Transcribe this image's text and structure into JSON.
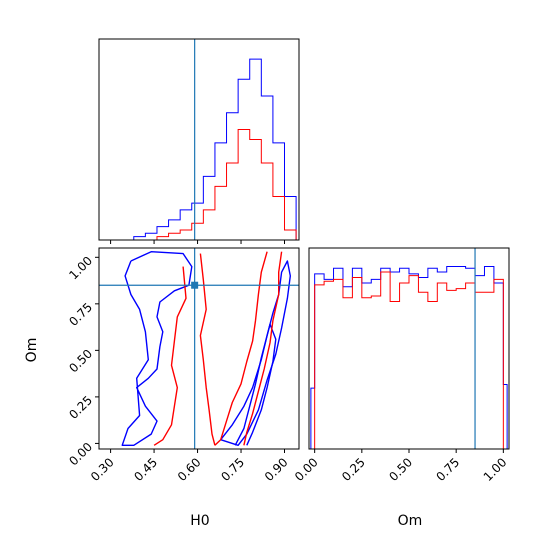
{
  "chart_data": {
    "type": "corner",
    "parameters": [
      "H0",
      "Om"
    ],
    "truth": {
      "H0": 0.59,
      "Om": 0.85
    },
    "truth_color": "#1f77b4",
    "series": [
      {
        "color": "#0000ff"
      },
      {
        "color": "#ff0000"
      }
    ],
    "panels": [
      {
        "id": "hist-H0",
        "type": "step-histogram",
        "xlim": [
          0.26,
          0.95
        ],
        "bin_edges": [
          0.26,
          0.28,
          0.3,
          0.32,
          0.34,
          0.36,
          0.38,
          0.4,
          0.42,
          0.44,
          0.46,
          0.48,
          0.5,
          0.52,
          0.54,
          0.56,
          0.58,
          0.6,
          0.62,
          0.64,
          0.66,
          0.68,
          0.7,
          0.72,
          0.74,
          0.76,
          0.78,
          0.8,
          0.82,
          0.84,
          0.86,
          0.88,
          0.9,
          0.92,
          0.94
        ],
        "series_values": [
          [
            0,
            0,
            0,
            0,
            0,
            0,
            0.5,
            0.5,
            1,
            1,
            2,
            2,
            3,
            3,
            4.5,
            4.5,
            5.5,
            5.5,
            9.5,
            9.5,
            14.5,
            14.5,
            19,
            19,
            24,
            24,
            27,
            27,
            21.5,
            21.5,
            14.5,
            14.5,
            6.5,
            6.5
          ],
          [
            0,
            0,
            0,
            0,
            0,
            0,
            0,
            0,
            0,
            0,
            0.5,
            0.5,
            1,
            1,
            1.5,
            1.5,
            2.5,
            2.5,
            4.5,
            4.5,
            8,
            8,
            11.5,
            11.5,
            16.5,
            16.5,
            15,
            15,
            11.5,
            11.5,
            6.5,
            6.5,
            1.5,
            1.5
          ]
        ],
        "ylim": [
          0,
          30
        ],
        "xticks": [
          0.3,
          0.45,
          0.6,
          0.75,
          0.9
        ]
      },
      {
        "id": "scatter-H0-Om",
        "type": "contour",
        "xlim": [
          0.26,
          0.95
        ],
        "ylim": [
          -0.03,
          1.05
        ],
        "xticks": [
          0.3,
          0.45,
          0.6,
          0.75,
          0.9
        ],
        "yticks": [
          0.0,
          0.25,
          0.5,
          0.75,
          1.0
        ],
        "xtick_labels": [
          "0.30",
          "0.45",
          "0.60",
          "0.75",
          "0.90"
        ],
        "ytick_labels": [
          "0.00",
          "0.25",
          "0.50",
          "0.75",
          "1.00"
        ],
        "xlabel": "H0",
        "ylabel": "Om",
        "contours": [
          {
            "series": 0,
            "points": [
              [
                0.37,
                0.98
              ],
              [
                0.44,
                1.03
              ],
              [
                0.55,
                1.02
              ],
              [
                0.58,
                0.95
              ],
              [
                0.57,
                0.85
              ],
              [
                0.52,
                0.82
              ],
              [
                0.47,
                0.76
              ],
              [
                0.46,
                0.68
              ],
              [
                0.48,
                0.6
              ],
              [
                0.47,
                0.52
              ],
              [
                0.46,
                0.4
              ],
              [
                0.43,
                0.35
              ],
              [
                0.39,
                0.3
              ],
              [
                0.42,
                0.2
              ],
              [
                0.46,
                0.12
              ],
              [
                0.44,
                0.05
              ],
              [
                0.38,
                -0.01
              ],
              [
                0.34,
                -0.01
              ],
              [
                0.36,
                0.08
              ],
              [
                0.4,
                0.15
              ],
              [
                0.39,
                0.35
              ],
              [
                0.43,
                0.45
              ],
              [
                0.42,
                0.6
              ],
              [
                0.4,
                0.72
              ],
              [
                0.37,
                0.8
              ],
              [
                0.35,
                0.9
              ],
              [
                0.37,
                0.98
              ]
            ]
          },
          {
            "series": 0,
            "points": [
              [
                0.68,
                0.02
              ],
              [
                0.72,
                0.1
              ],
              [
                0.76,
                0.2
              ],
              [
                0.79,
                0.3
              ],
              [
                0.82,
                0.45
              ],
              [
                0.84,
                0.58
              ],
              [
                0.86,
                0.7
              ],
              [
                0.88,
                0.8
              ],
              [
                0.89,
                0.92
              ],
              [
                0.91,
                0.98
              ],
              [
                0.92,
                0.9
              ],
              [
                0.91,
                0.78
              ],
              [
                0.89,
                0.62
              ],
              [
                0.87,
                0.48
              ],
              [
                0.84,
                0.34
              ],
              [
                0.81,
                0.18
              ],
              [
                0.77,
                0.05
              ],
              [
                0.74,
                -0.01
              ],
              [
                0.68,
                0.02
              ]
            ]
          },
          {
            "series": 0,
            "points": [
              [
                0.73,
                -0.01
              ],
              [
                0.76,
                0.08
              ],
              [
                0.78,
                0.2
              ],
              [
                0.8,
                0.32
              ],
              [
                0.82,
                0.46
              ],
              [
                0.84,
                0.58
              ],
              [
                0.85,
                0.64
              ],
              [
                0.87,
                0.56
              ],
              [
                0.86,
                0.44
              ],
              [
                0.84,
                0.3
              ],
              [
                0.82,
                0.18
              ],
              [
                0.79,
                0.06
              ],
              [
                0.77,
                -0.01
              ]
            ]
          },
          {
            "series": 1,
            "points": [
              [
                0.55,
                0.95
              ],
              [
                0.56,
                0.78
              ],
              [
                0.53,
                0.68
              ],
              [
                0.52,
                0.55
              ],
              [
                0.51,
                0.42
              ],
              [
                0.53,
                0.3
              ],
              [
                0.52,
                0.2
              ],
              [
                0.51,
                0.1
              ],
              [
                0.48,
                0.02
              ],
              [
                0.45,
                -0.01
              ]
            ]
          },
          {
            "series": 1,
            "points": [
              [
                0.61,
                1.02
              ],
              [
                0.62,
                0.88
              ],
              [
                0.63,
                0.72
              ],
              [
                0.61,
                0.58
              ],
              [
                0.62,
                0.45
              ],
              [
                0.63,
                0.3
              ],
              [
                0.64,
                0.18
              ],
              [
                0.65,
                0.05
              ],
              [
                0.66,
                -0.01
              ]
            ]
          },
          {
            "series": 1,
            "points": [
              [
                0.84,
                1.03
              ],
              [
                0.82,
                0.92
              ],
              [
                0.81,
                0.8
              ],
              [
                0.8,
                0.66
              ],
              [
                0.79,
                0.55
              ],
              [
                0.77,
                0.44
              ],
              [
                0.75,
                0.32
              ],
              [
                0.72,
                0.22
              ],
              [
                0.7,
                0.12
              ],
              [
                0.68,
                0.02
              ],
              [
                0.66,
                -0.01
              ]
            ]
          },
          {
            "series": 1,
            "points": [
              [
                0.89,
                1.03
              ],
              [
                0.88,
                0.92
              ],
              [
                0.88,
                0.8
              ],
              [
                0.86,
                0.66
              ],
              [
                0.85,
                0.54
              ],
              [
                0.83,
                0.4
              ],
              [
                0.81,
                0.28
              ],
              [
                0.79,
                0.16
              ],
              [
                0.77,
                0.06
              ],
              [
                0.76,
                -0.01
              ]
            ]
          }
        ]
      },
      {
        "id": "hist-Om",
        "type": "step-histogram",
        "xlim": [
          -0.03,
          1.03
        ],
        "bin_edges": [
          -0.02,
          0.0,
          0.05,
          0.1,
          0.15,
          0.2,
          0.25,
          0.3,
          0.35,
          0.4,
          0.45,
          0.5,
          0.55,
          0.6,
          0.65,
          0.7,
          0.75,
          0.8,
          0.85,
          0.9,
          0.95,
          1.0,
          1.02
        ],
        "series_values": [
          [
            0.33,
            0.95,
            0.92,
            0.98,
            0.88,
            0.98,
            0.9,
            0.92,
            0.98,
            0.96,
            0.98,
            0.95,
            0.93,
            0.98,
            0.96,
            0.99,
            0.99,
            0.98,
            0.94,
            0.99,
            0.9,
            0.35
          ],
          [
            0,
            0.89,
            0.91,
            0.92,
            0.82,
            0.93,
            0.82,
            0.83,
            0.96,
            0.8,
            0.9,
            0.94,
            0.85,
            0.8,
            0.9,
            0.86,
            0.87,
            0.9,
            0.85,
            0.85,
            0.92,
            0
          ]
        ],
        "ylim": [
          0,
          1.09
        ],
        "xticks": [
          0.0,
          0.25,
          0.5,
          0.75,
          1.0
        ],
        "xtick_labels": [
          "0.00",
          "0.25",
          "0.50",
          "0.75",
          "1.00"
        ],
        "xlabel": "Om"
      }
    ]
  }
}
